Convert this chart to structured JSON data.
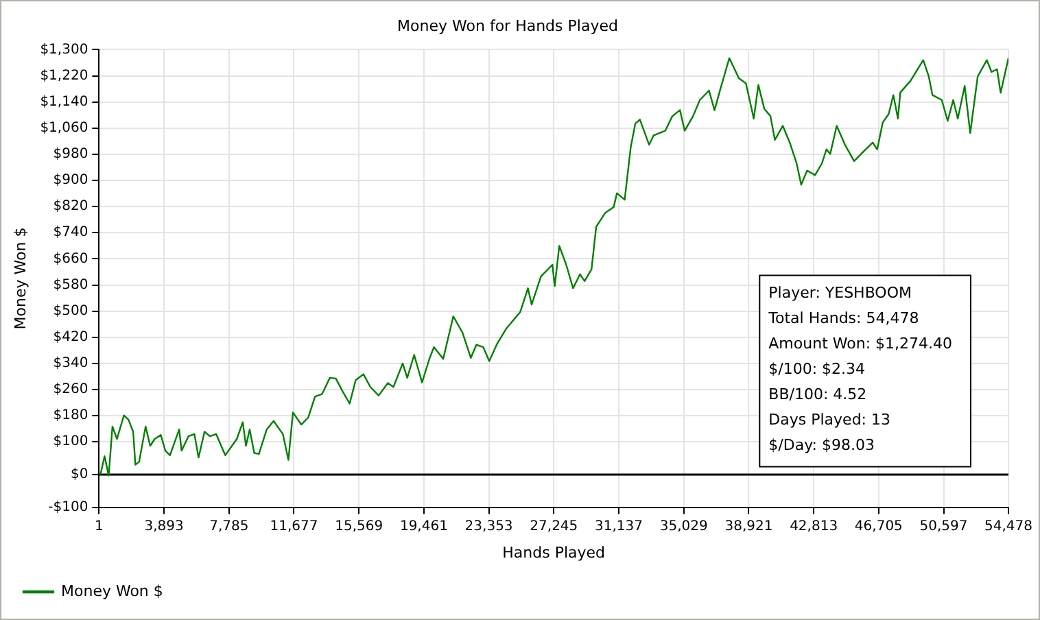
{
  "chart_data": {
    "type": "line",
    "title": "Money Won for Hands Played",
    "xlabel": "Hands Played",
    "ylabel": "Money Won $",
    "x": [
      1,
      108,
      331,
      580,
      803,
      1076,
      1490,
      1764,
      2045,
      2178,
      2401,
      2790,
      3064,
      3337,
      3701,
      3974,
      4248,
      4802,
      4943,
      5357,
      5713,
      5962,
      6318,
      6649,
      7013,
      7560,
      8255,
      8611,
      8802,
      9025,
      9298,
      9580,
      10044,
      10458,
      11012,
      11344,
      11617,
      12114,
      12528,
      12942,
      13356,
      13828,
      14184,
      14598,
      15012,
      15376,
      15840,
      16254,
      16750,
      17305,
      17636,
      18191,
      18464,
      18878,
      19350,
      19789,
      20062,
      20617,
      21222,
      21776,
      22273,
      22604,
      23018,
      23374,
      23846,
      24401,
      25229,
      25693,
      25916,
      26471,
      27158,
      27299,
      27572,
      27986,
      28400,
      28814,
      29088,
      29502,
      29783,
      30330,
      30826,
      31025,
      31489,
      31853,
      32126,
      32400,
      32954,
      33228,
      33923,
      34337,
      34800,
      35082,
      35579,
      35993,
      36540,
      36871,
      37235,
      37757,
      38336,
      38750,
      39222,
      39496,
      39854,
      40218,
      40489,
      40961,
      41375,
      41789,
      42062,
      42419,
      42890,
      43304,
      43577,
      43801,
      44190,
      44687,
      45234,
      45788,
      46343,
      46616,
      46948,
      47304,
      47585,
      47858,
      47999,
      48604,
      49374,
      49705,
      49928,
      50483,
      50839,
      51170,
      51444,
      51858,
      52189,
      52636,
      53183,
      53464,
      53795,
      54011,
      54478
    ],
    "series": [
      {
        "name": "Money Won $",
        "color": "#008000",
        "values": [
          0,
          5,
          56,
          -3,
          147,
          109,
          181,
          168,
          131,
          30,
          39,
          147,
          88,
          109,
          121,
          73,
          59,
          138,
          73,
          117,
          124,
          52,
          131,
          117,
          124,
          59,
          109,
          160,
          88,
          138,
          66,
          63,
          138,
          164,
          124,
          45,
          190,
          153,
          174,
          239,
          246,
          296,
          294,
          254,
          217,
          289,
          307,
          268,
          242,
          280,
          268,
          340,
          296,
          366,
          282,
          354,
          390,
          354,
          484,
          434,
          357,
          397,
          390,
          347,
          400,
          447,
          497,
          570,
          520,
          606,
          642,
          577,
          700,
          642,
          570,
          613,
          592,
          628,
          758,
          801,
          818,
          861,
          841,
          1002,
          1074,
          1086,
          1009,
          1038,
          1052,
          1096,
          1115,
          1052,
          1096,
          1146,
          1175,
          1115,
          1182,
          1274,
          1212,
          1197,
          1089,
          1192,
          1119,
          1097,
          1024,
          1067,
          1016,
          952,
          887,
          930,
          916,
          952,
          995,
          981,
          1067,
          1009,
          959,
          988,
          1016,
          995,
          1077,
          1103,
          1161,
          1089,
          1169,
          1204,
          1268,
          1218,
          1161,
          1146,
          1082,
          1146,
          1089,
          1189,
          1045,
          1218,
          1268,
          1232,
          1240,
          1168,
          1274
        ]
      }
    ],
    "xlim": [
      1,
      54478
    ],
    "xticks": [
      1,
      {
        "value": 3893,
        "label": "3,893"
      },
      {
        "value": 7785,
        "label": "7,785"
      },
      {
        "value": 11677,
        "label": "11,677"
      },
      {
        "value": 15569,
        "label": "15,569"
      },
      {
        "value": 19461,
        "label": "19,461"
      },
      {
        "value": 23353,
        "label": "23,353"
      },
      {
        "value": 27245,
        "label": "27,245"
      },
      {
        "value": 31137,
        "label": "31,137"
      },
      {
        "value": 35029,
        "label": "35,029"
      },
      {
        "value": 38921,
        "label": "38,921"
      },
      {
        "value": 42813,
        "label": "42,813"
      },
      {
        "value": 46705,
        "label": "46,705"
      },
      {
        "value": 50597,
        "label": "50,597"
      },
      {
        "value": 54478,
        "label": "54,478"
      }
    ],
    "ylim": [
      -100,
      1300
    ],
    "yticks": [
      {
        "value": -100,
        "label": "-$100"
      },
      {
        "value": 0,
        "label": "$0"
      },
      {
        "value": 100,
        "label": "$100"
      },
      {
        "value": 180,
        "label": "$180"
      },
      {
        "value": 260,
        "label": "$260"
      },
      {
        "value": 340,
        "label": "$340"
      },
      {
        "value": 420,
        "label": "$420"
      },
      {
        "value": 500,
        "label": "$500"
      },
      {
        "value": 580,
        "label": "$580"
      },
      {
        "value": 660,
        "label": "$660"
      },
      {
        "value": 740,
        "label": "$740"
      },
      {
        "value": 820,
        "label": "$820"
      },
      {
        "value": 900,
        "label": "$900"
      },
      {
        "value": 980,
        "label": "$980"
      },
      {
        "value": 1060,
        "label": "$1,060"
      },
      {
        "value": 1140,
        "label": "$1,140"
      },
      {
        "value": 1220,
        "label": "$1,220"
      },
      {
        "value": 1300,
        "label": "$1,300"
      }
    ],
    "ref_lines": [
      {
        "axis": "y",
        "value": 0,
        "color": "#000000"
      }
    ],
    "annotations": [
      "Player: YESHBOOM",
      "Total Hands: 54,478",
      "Amount Won: $1,274.40",
      "$/100: $2.34",
      "BB/100: 4.52",
      "Days Played: 13",
      "$/Day: $98.03"
    ],
    "grid": true,
    "legend": "bottom left",
    "marker": "none",
    "line_style": "solid"
  }
}
